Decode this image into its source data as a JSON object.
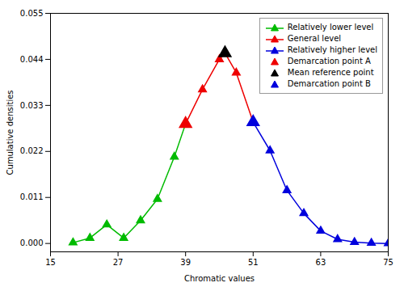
{
  "chart_data": {
    "type": "line",
    "xlabel": "Chromatic values",
    "ylabel": "Cumulative densities",
    "xlim": [
      15,
      75
    ],
    "ylim": [
      -0.002,
      0.055
    ],
    "xticks": [
      15,
      27,
      39,
      51,
      63,
      75
    ],
    "yticks": [
      {
        "value": 0,
        "label": "0.000"
      },
      0.011,
      0.022,
      0.033,
      0.044,
      0.055
    ],
    "grid": false,
    "legend": "upper right",
    "series": [
      {
        "name": "Relatively lower level",
        "color": "#00bb00",
        "marker": "triangle",
        "x": [
          19,
          22,
          25,
          28,
          31,
          34,
          37,
          39
        ],
        "values": [
          0.0002,
          0.0013,
          0.0045,
          0.0013,
          0.0055,
          0.0106,
          0.0207,
          0.0286
        ]
      },
      {
        "name": "General level",
        "color": "#ee0000",
        "marker": "triangle",
        "x": [
          39,
          42,
          45,
          46,
          48,
          51
        ],
        "values": [
          0.0286,
          0.0368,
          0.044,
          0.0455,
          0.0408,
          0.029
        ]
      },
      {
        "name": "Relatively higher level",
        "color": "#0000dd",
        "marker": "triangle",
        "x": [
          51,
          54,
          57,
          60,
          63,
          66,
          69,
          72,
          75
        ],
        "values": [
          0.029,
          0.0222,
          0.0127,
          0.0072,
          0.003,
          0.001,
          0.0003,
          0.0001,
          0.0
        ]
      },
      {
        "name": "Demarcation point A",
        "type": "scatter",
        "color": "#ee0000",
        "marker": "triangle",
        "x": [
          39
        ],
        "values": [
          0.0286
        ]
      },
      {
        "name": "Mean reference point",
        "type": "scatter",
        "color": "#000000",
        "marker": "triangle",
        "x": [
          46
        ],
        "values": [
          0.0455
        ]
      },
      {
        "name": "Demarcation point B",
        "type": "scatter",
        "color": "#0000dd",
        "marker": "triangle",
        "x": [
          51
        ],
        "values": [
          0.029
        ]
      }
    ]
  }
}
